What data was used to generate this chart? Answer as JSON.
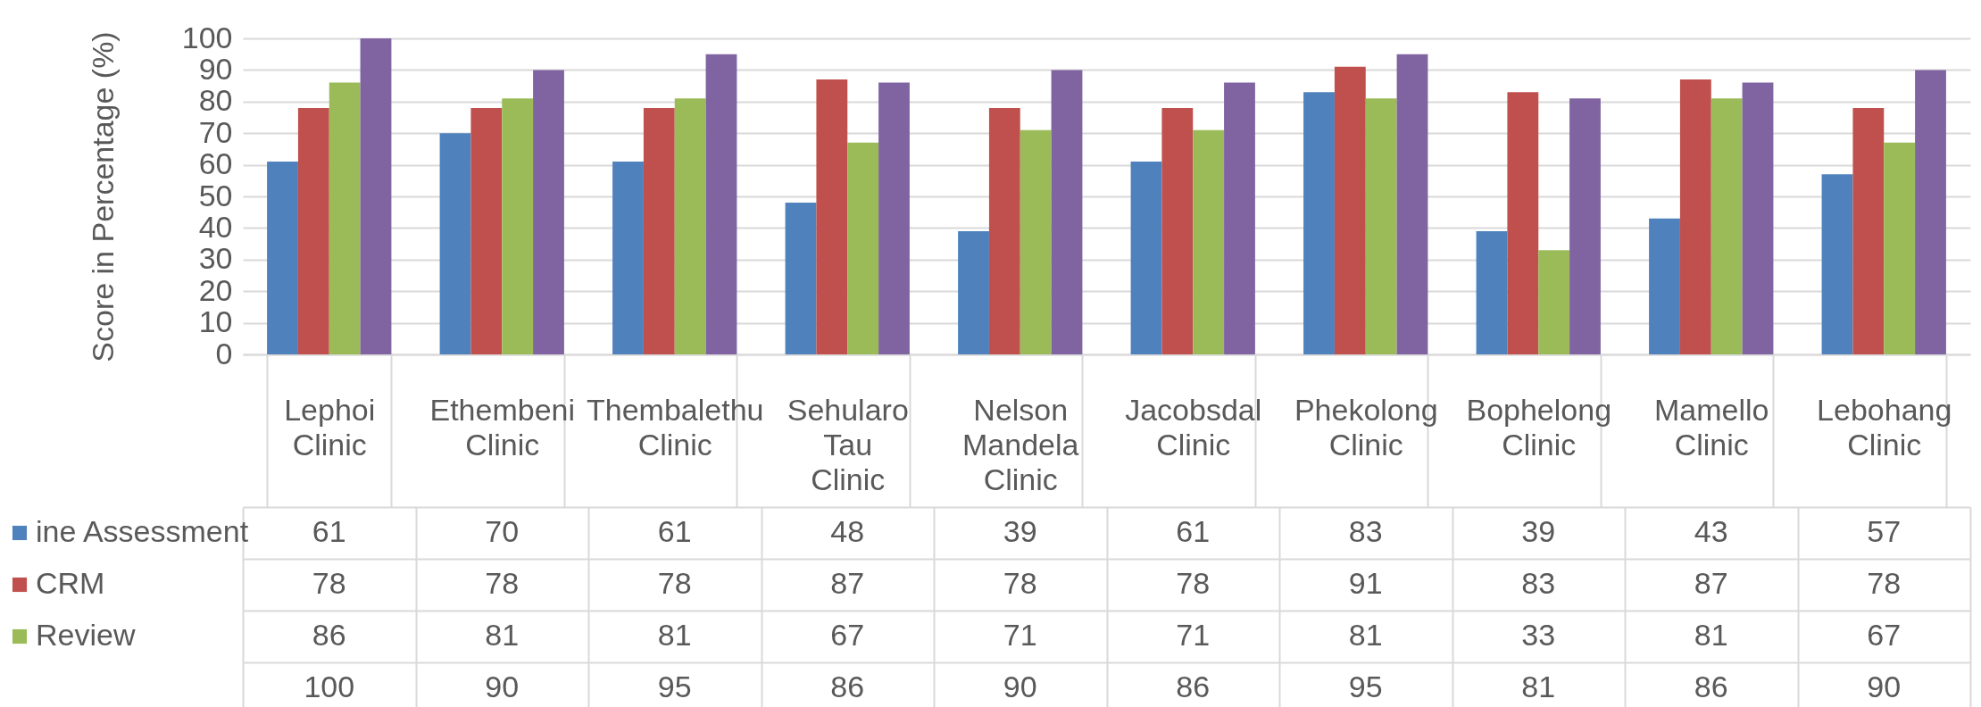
{
  "chart_data": {
    "type": "bar",
    "ylabel": "Score in Percentage (%)",
    "categories": [
      "Lephoi Clinic",
      "Ethembeni Clinic",
      "Thembalethu Clinic",
      "Sehularo Tau Clinic",
      "Nelson Mandela Clinic",
      "Jacobsdal Clinic",
      "Phekolong Clinic",
      "Bophelong Clinic",
      "Mamello Clinic",
      "Lebohang Clinic"
    ],
    "series": [
      {
        "name": "ine Assessment",
        "color": "#4f81bd",
        "values": [
          61,
          70,
          61,
          48,
          39,
          61,
          83,
          39,
          43,
          57
        ]
      },
      {
        "name": "CRM",
        "color": "#c0504d",
        "values": [
          78,
          78,
          78,
          87,
          78,
          78,
          91,
          83,
          87,
          78
        ]
      },
      {
        "name": "Review",
        "color": "#9bbb59",
        "values": [
          86,
          81,
          81,
          67,
          71,
          71,
          81,
          33,
          81,
          67
        ]
      },
      {
        "color": "#8064a2",
        "values": [
          100,
          90,
          95,
          86,
          90,
          86,
          95,
          81,
          86,
          90
        ]
      }
    ],
    "ylim": [
      0,
      100
    ],
    "yticks": [
      0,
      10,
      20,
      30,
      40,
      50,
      60,
      70,
      80,
      90,
      100
    ],
    "grid": "y",
    "data_labels": true,
    "legend": "left"
  }
}
